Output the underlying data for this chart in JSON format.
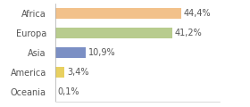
{
  "categories": [
    "Africa",
    "Europa",
    "Asia",
    "America",
    "Oceania"
  ],
  "values": [
    44.4,
    41.2,
    10.9,
    3.4,
    0.1
  ],
  "labels": [
    "44,4%",
    "41,2%",
    "10,9%",
    "3,4%",
    "0,1%"
  ],
  "bar_colors": [
    "#f2c18a",
    "#b8cc8e",
    "#7b8fc4",
    "#e8d060",
    "#cccccc"
  ],
  "background_color": "#ffffff",
  "label_fontsize": 7.0,
  "tick_fontsize": 7.0,
  "bar_height": 0.55,
  "xlim": [
    0,
    58
  ]
}
